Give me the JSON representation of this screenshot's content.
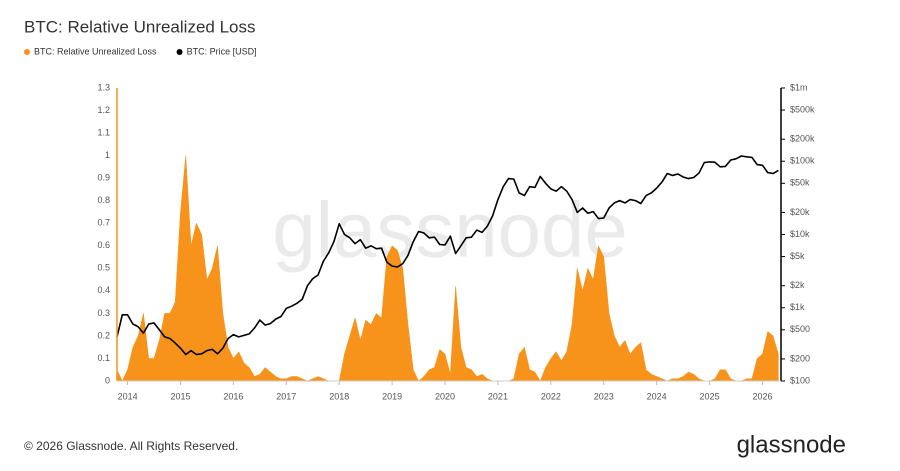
{
  "chart_data": {
    "type": "area",
    "title": "BTC: Relative Unrealized Loss",
    "watermark": "glassnode",
    "x": [
      2013.8,
      2013.9,
      2014.0,
      2014.1,
      2014.2,
      2014.3,
      2014.4,
      2014.5,
      2014.6,
      2014.7,
      2014.8,
      2014.9,
      2015.0,
      2015.1,
      2015.2,
      2015.3,
      2015.4,
      2015.5,
      2015.6,
      2015.7,
      2015.8,
      2015.9,
      2016.0,
      2016.1,
      2016.2,
      2016.3,
      2016.4,
      2016.5,
      2016.6,
      2016.7,
      2016.8,
      2016.9,
      2017.0,
      2017.1,
      2017.2,
      2017.3,
      2017.4,
      2017.5,
      2017.6,
      2017.7,
      2017.8,
      2017.9,
      2018.0,
      2018.1,
      2018.2,
      2018.3,
      2018.4,
      2018.5,
      2018.6,
      2018.7,
      2018.8,
      2018.9,
      2019.0,
      2019.1,
      2019.2,
      2019.3,
      2019.4,
      2019.5,
      2019.6,
      2019.7,
      2019.8,
      2019.9,
      2020.0,
      2020.1,
      2020.2,
      2020.3,
      2020.4,
      2020.5,
      2020.6,
      2020.7,
      2020.8,
      2020.9,
      2021.0,
      2021.1,
      2021.2,
      2021.3,
      2021.4,
      2021.5,
      2021.6,
      2021.7,
      2021.8,
      2021.9,
      2022.0,
      2022.1,
      2022.2,
      2022.3,
      2022.4,
      2022.5,
      2022.6,
      2022.7,
      2022.8,
      2022.9,
      2023.0,
      2023.1,
      2023.2,
      2023.3,
      2023.4,
      2023.5,
      2023.6,
      2023.7,
      2023.8,
      2023.9,
      2024.0,
      2024.1,
      2024.2,
      2024.3,
      2024.4,
      2024.5,
      2024.6,
      2024.7,
      2024.8,
      2024.9,
      2025.0,
      2025.1,
      2025.2,
      2025.3,
      2025.4,
      2025.5,
      2025.6,
      2025.7,
      2025.8,
      2025.9,
      2026.0,
      2026.1,
      2026.2,
      2026.3
    ],
    "series": [
      {
        "name": "BTC: Relative Unrealized Loss",
        "type": "area",
        "color": "#f7931a",
        "values": [
          0.05,
          0.0,
          0.05,
          0.15,
          0.2,
          0.3,
          0.1,
          0.1,
          0.18,
          0.3,
          0.3,
          0.35,
          0.75,
          1.0,
          0.6,
          0.7,
          0.65,
          0.45,
          0.5,
          0.6,
          0.3,
          0.15,
          0.1,
          0.13,
          0.08,
          0.06,
          0.02,
          0.03,
          0.06,
          0.04,
          0.02,
          0.01,
          0.01,
          0.02,
          0.02,
          0.01,
          0.0,
          0.01,
          0.02,
          0.01,
          0.0,
          0.0,
          0.0,
          0.12,
          0.2,
          0.28,
          0.18,
          0.27,
          0.25,
          0.3,
          0.28,
          0.55,
          0.6,
          0.58,
          0.5,
          0.25,
          0.05,
          0.0,
          0.02,
          0.05,
          0.06,
          0.14,
          0.12,
          0.03,
          0.42,
          0.15,
          0.06,
          0.05,
          0.02,
          0.03,
          0.01,
          0.0,
          0.0,
          0.0,
          0.0,
          0.01,
          0.12,
          0.15,
          0.05,
          0.04,
          0.0,
          0.06,
          0.1,
          0.13,
          0.09,
          0.13,
          0.25,
          0.5,
          0.4,
          0.5,
          0.45,
          0.6,
          0.55,
          0.3,
          0.2,
          0.15,
          0.18,
          0.12,
          0.15,
          0.17,
          0.05,
          0.03,
          0.02,
          0.01,
          0.0,
          0.01,
          0.01,
          0.02,
          0.04,
          0.03,
          0.01,
          0.0,
          0.0,
          0.01,
          0.05,
          0.05,
          0.01,
          0.0,
          0.0,
          0.01,
          0.01,
          0.1,
          0.12,
          0.22,
          0.2,
          0.12
        ]
      },
      {
        "name": "BTC: Price [USD]",
        "type": "line",
        "color": "#000000",
        "axis": "y2",
        "values": [
          400,
          800,
          800,
          600,
          550,
          450,
          600,
          620,
          500,
          400,
          380,
          330,
          280,
          230,
          260,
          230,
          235,
          260,
          270,
          235,
          280,
          380,
          430,
          400,
          420,
          440,
          530,
          680,
          580,
          610,
          700,
          760,
          980,
          1050,
          1150,
          1300,
          2000,
          2500,
          2800,
          4300,
          5600,
          8000,
          14000,
          10000,
          9000,
          7500,
          8500,
          6500,
          7000,
          6400,
          6500,
          4200,
          3700,
          3600,
          4000,
          5200,
          8000,
          11000,
          10500,
          9000,
          9200,
          7300,
          7200,
          9500,
          5500,
          7000,
          9000,
          9200,
          11500,
          10700,
          13000,
          18000,
          30000,
          45000,
          58000,
          57000,
          37000,
          34000,
          45000,
          44000,
          62000,
          50000,
          42000,
          39000,
          45000,
          39000,
          30000,
          20000,
          23000,
          19500,
          20500,
          16500,
          16800,
          23000,
          27000,
          29000,
          27000,
          30000,
          29000,
          26500,
          34000,
          37000,
          43000,
          52000,
          68000,
          64000,
          67000,
          61000,
          58000,
          60000,
          69000,
          96000,
          98000,
          97000,
          84000,
          85000,
          104000,
          108000,
          118000,
          115000,
          113000,
          90000,
          88000,
          70000,
          68000,
          75000
        ]
      }
    ],
    "xlim": [
      2013.8,
      2026.35
    ],
    "xticks": [
      2014,
      2015,
      2016,
      2017,
      2018,
      2019,
      2020,
      2021,
      2022,
      2023,
      2024,
      2025,
      2026
    ],
    "ylim": [
      0,
      1.3
    ],
    "yticks": [
      0,
      0.1,
      0.2,
      0.3,
      0.4,
      0.5,
      0.6,
      0.7,
      0.8,
      0.9,
      1,
      1.1,
      1.2,
      1.3
    ],
    "y2lim": [
      100,
      1000000
    ],
    "y2scale": "log",
    "y2ticks": [
      {
        "value": 100,
        "label": "$100"
      },
      {
        "value": 200,
        "label": "$200"
      },
      {
        "value": 500,
        "label": "$500"
      },
      {
        "value": 1000,
        "label": "$1k"
      },
      {
        "value": 2000,
        "label": "$2k"
      },
      {
        "value": 5000,
        "label": "$5k"
      },
      {
        "value": 10000,
        "label": "$10k"
      },
      {
        "value": 20000,
        "label": "$20k"
      },
      {
        "value": 50000,
        "label": "$50k"
      },
      {
        "value": 100000,
        "label": "$100k"
      },
      {
        "value": 200000,
        "label": "$200k"
      },
      {
        "value": 500000,
        "label": "$500k"
      },
      {
        "value": 1000000,
        "label": "$1m"
      }
    ],
    "grid": false,
    "legend": "top-left"
  },
  "footer": {
    "copyright": "© 2026 Glassnode. All Rights Reserved.",
    "logo": "glassnode"
  }
}
